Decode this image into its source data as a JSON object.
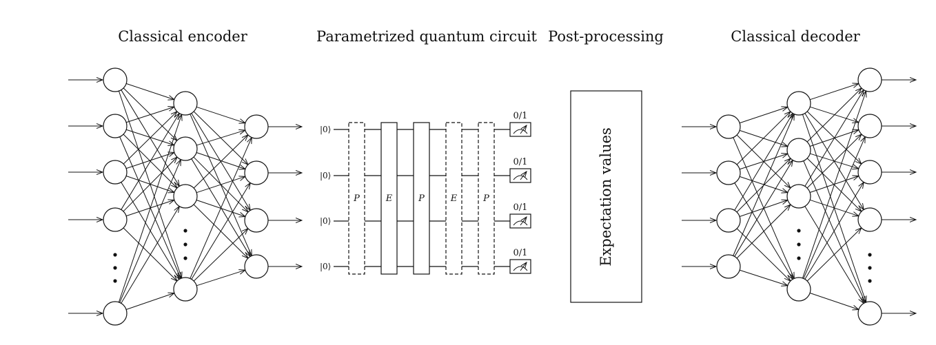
{
  "titles": {
    "encoder": "Classical encoder",
    "circuit": "Parametrized quantum circuit",
    "post": "Post-processing",
    "decoder": "Classical decoder"
  },
  "circuit": {
    "qubit_state": "|0⟩",
    "gates": [
      "P",
      "E",
      "P",
      "E",
      "P"
    ],
    "gate_styles": [
      "dashed",
      "solid",
      "solid",
      "dashed",
      "dashed"
    ],
    "measurement_label": "0/1"
  },
  "post_processing": {
    "box_label": "Expectation values"
  }
}
